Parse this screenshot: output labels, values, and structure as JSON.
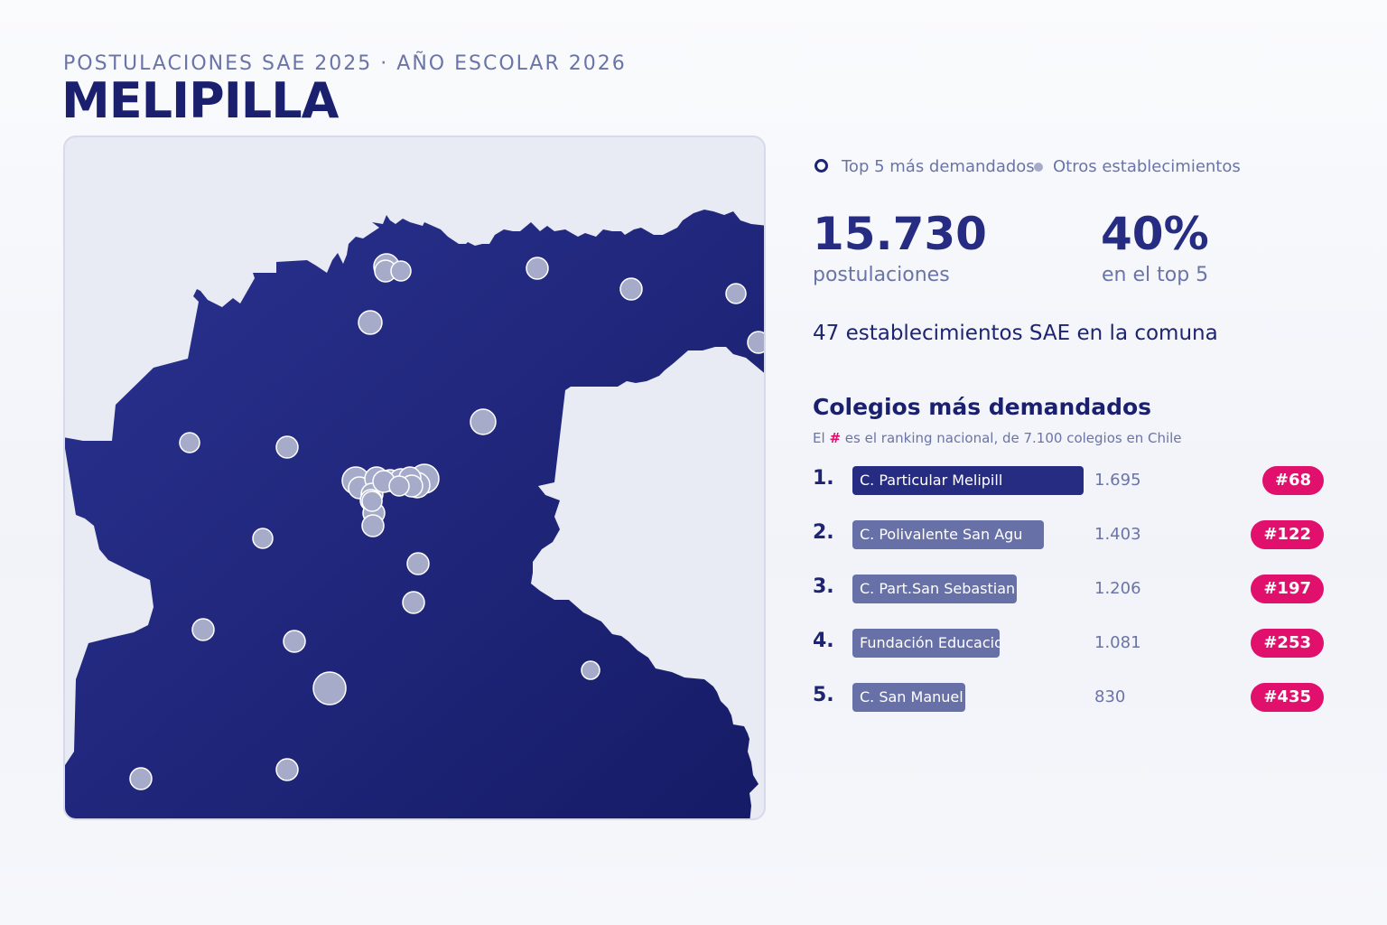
{
  "header": {
    "subtitle": "POSTULACIONES SAE 2025 · AÑO ESCOLAR 2026",
    "title": "MELIPILLA"
  },
  "legend": {
    "top5_label": "Top 5 más demandados",
    "others_label": "Otros establecimientos"
  },
  "stats": {
    "applications_value": "15.730",
    "applications_label": "postulaciones",
    "top5_share_value": "40%",
    "top5_share_label": "en el top 5",
    "establishments_text": "47 establecimientos SAE en la comuna"
  },
  "ranking": {
    "title": "Colegios más demandados",
    "note_prefix": "El",
    "note_hash": "#",
    "note_suffix": "es el ranking nacional, de 7.100 colegios en Chile",
    "items": [
      {
        "position": "1.",
        "name": "C. Particular Melipill",
        "count": "1.695",
        "count_value": 1695,
        "national_rank": "#68"
      },
      {
        "position": "2.",
        "name": "C. Polivalente San Agu",
        "count": "1.403",
        "count_value": 1403,
        "national_rank": "#122"
      },
      {
        "position": "3.",
        "name": "C. Part.San Sebastian",
        "count": "1.206",
        "count_value": 1206,
        "national_rank": "#197"
      },
      {
        "position": "4.",
        "name": "Fundación Educacional",
        "count": "1.081",
        "count_value": 1081,
        "national_rank": "#253"
      },
      {
        "position": "5.",
        "name": "C. San Manuel",
        "count": "830",
        "count_value": 830,
        "national_rank": "#435"
      }
    ]
  },
  "colors": {
    "territory": "#1e2470",
    "marker_fill": "#a5abc9",
    "marker_stroke": "#ffffff",
    "accent": "#e0106c",
    "bar_top": "#262c82",
    "bar_other": "#6771a8",
    "text_dark": "#1a1f6e",
    "text_muted": "#6b74a6"
  }
}
